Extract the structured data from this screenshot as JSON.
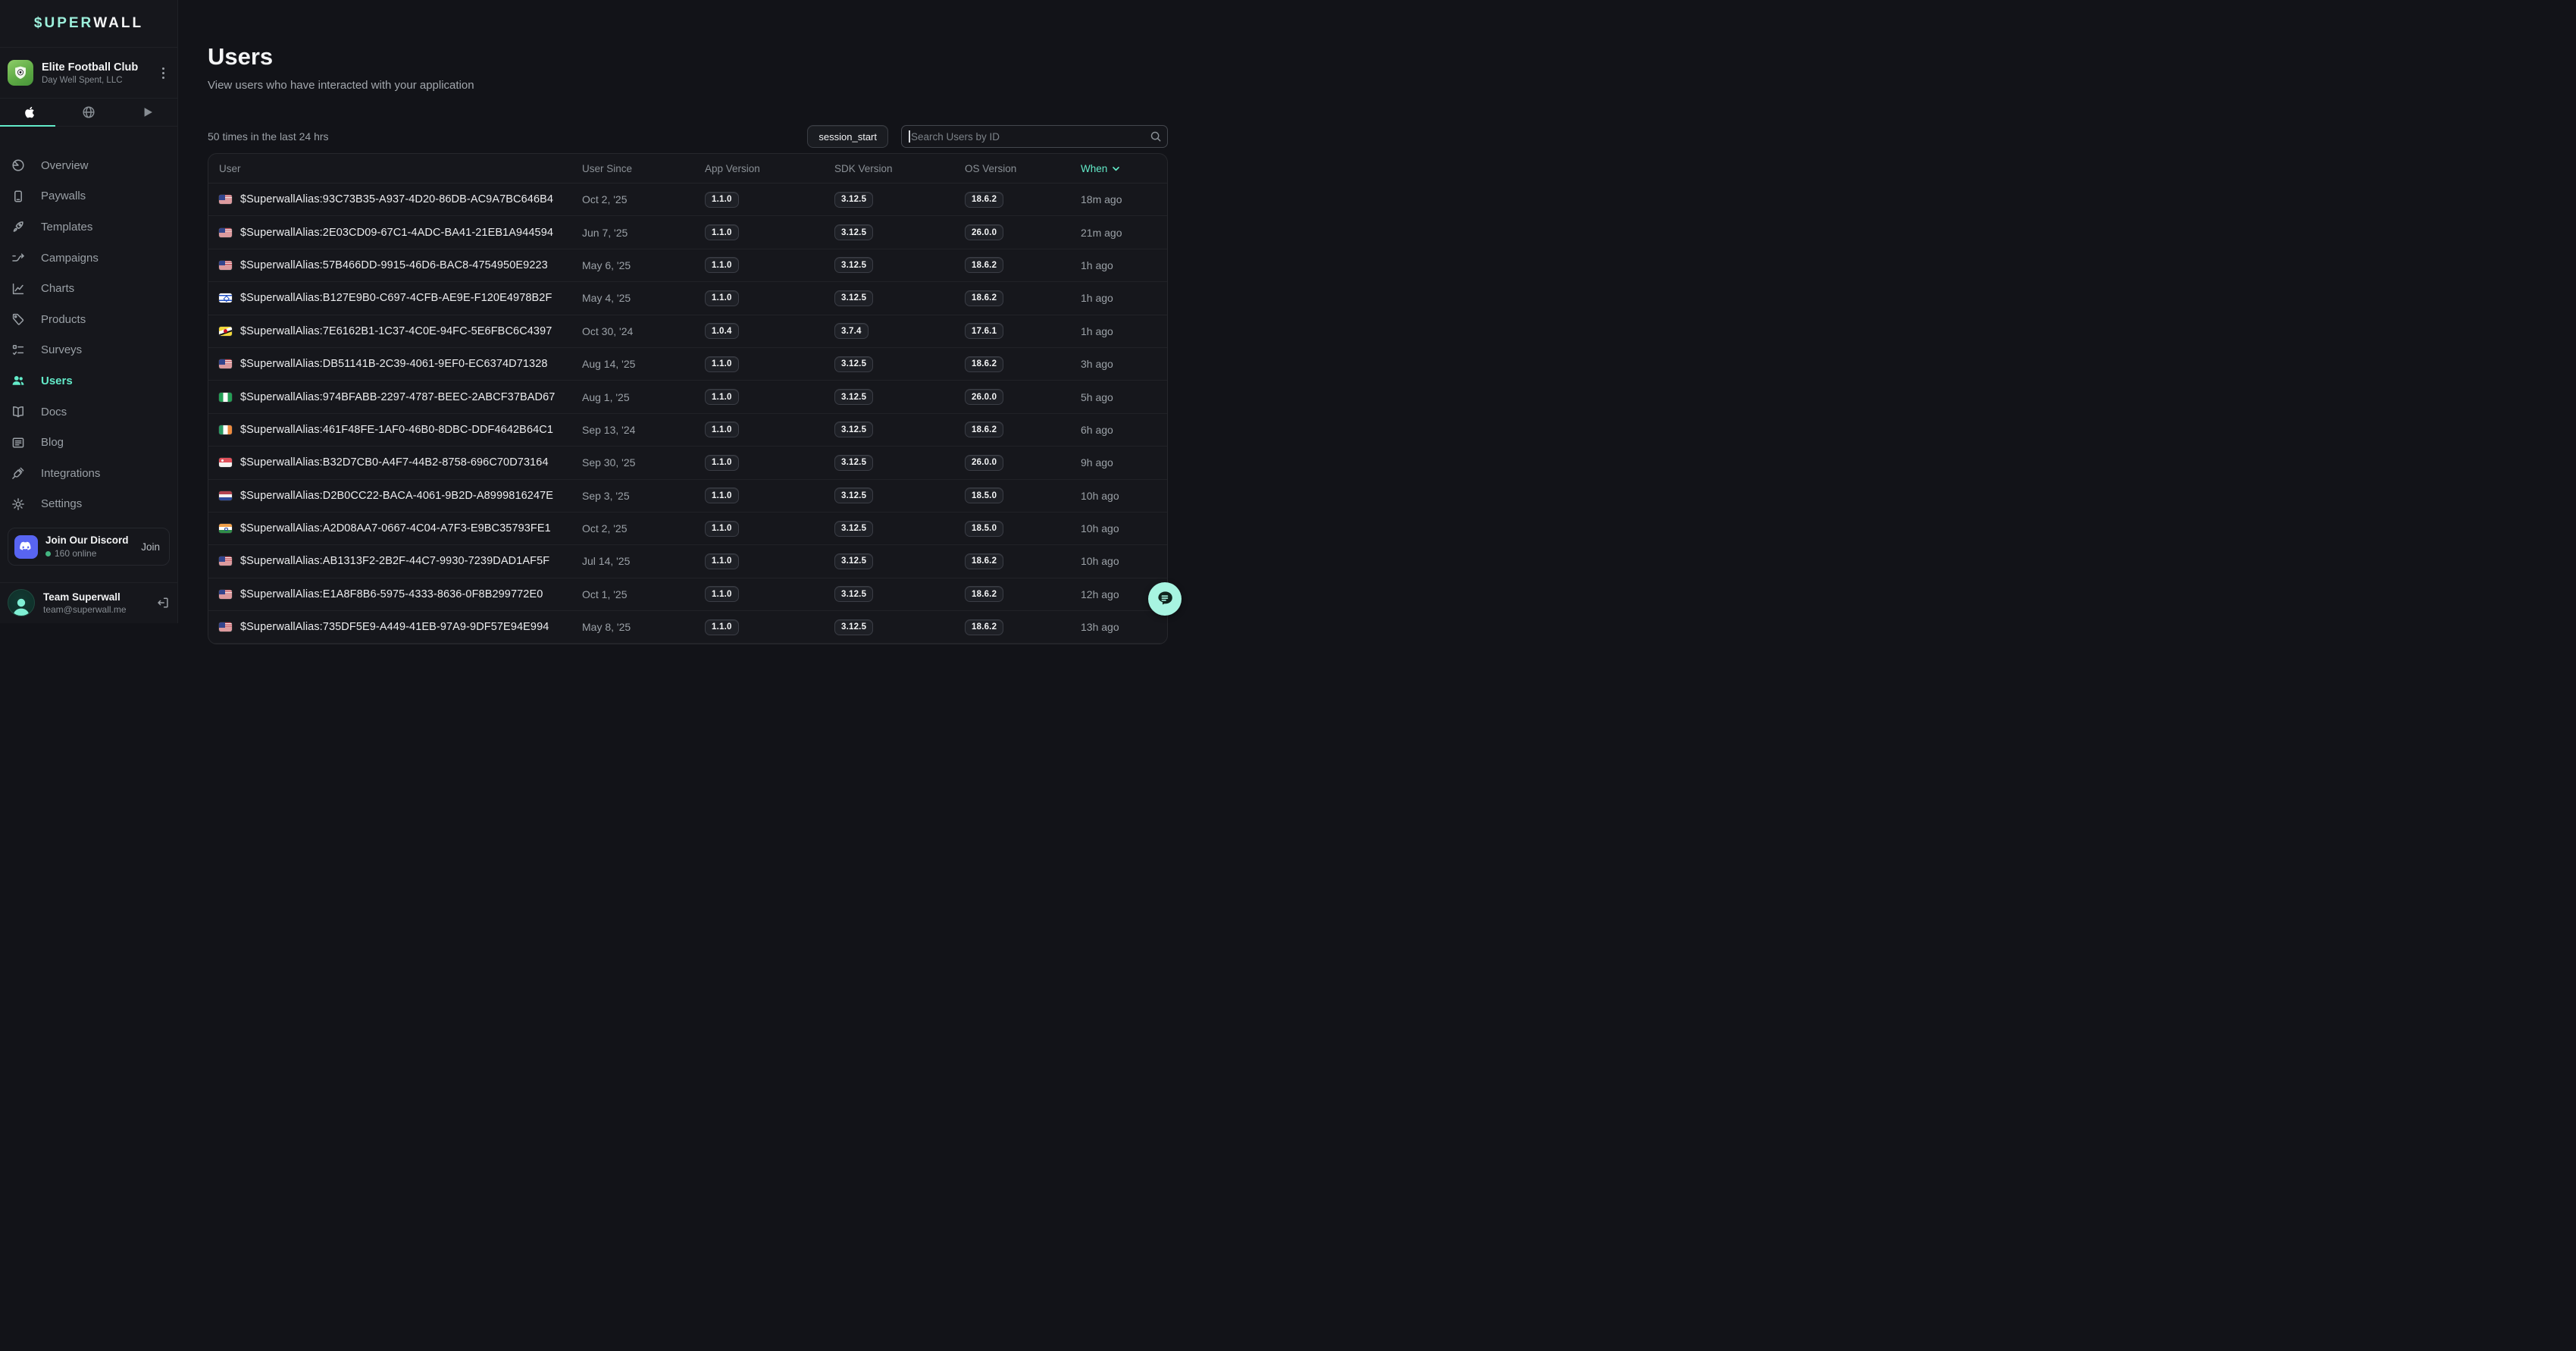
{
  "brand": {
    "logo_primary": "$UPER",
    "logo_secondary": "WALL"
  },
  "workspace": {
    "name": "Elite Football Club",
    "company": "Day Well Spent, LLC"
  },
  "platform_tabs": [
    {
      "id": "apple",
      "icon": "apple",
      "active": true
    },
    {
      "id": "web",
      "icon": "globe",
      "active": false
    },
    {
      "id": "google-play",
      "icon": "play",
      "active": false
    }
  ],
  "nav": {
    "items": [
      {
        "label": "Overview",
        "icon": "overview",
        "active": false
      },
      {
        "label": "Paywalls",
        "icon": "paywalls",
        "active": false
      },
      {
        "label": "Templates",
        "icon": "templates",
        "active": false
      },
      {
        "label": "Campaigns",
        "icon": "campaigns",
        "active": false
      },
      {
        "label": "Charts",
        "icon": "charts",
        "active": false
      },
      {
        "label": "Products",
        "icon": "products",
        "active": false
      },
      {
        "label": "Surveys",
        "icon": "surveys",
        "active": false
      },
      {
        "label": "Users",
        "icon": "users",
        "active": true
      },
      {
        "label": "Docs",
        "icon": "docs",
        "active": false
      },
      {
        "label": "Blog",
        "icon": "blog",
        "active": false
      },
      {
        "label": "Integrations",
        "icon": "integrations",
        "active": false
      },
      {
        "label": "Settings",
        "icon": "settings",
        "active": false
      }
    ]
  },
  "discord": {
    "title": "Join Our Discord",
    "online": "160 online",
    "action": "Join"
  },
  "account": {
    "name": "Team Superwall",
    "email": "team@superwall.me"
  },
  "page": {
    "title": "Users",
    "subtitle": "View users who have interacted with your application",
    "count_text": "50 times in the last 24 hrs",
    "event_filter": "session_start",
    "search_placeholder": "Search Users by ID"
  },
  "table": {
    "columns": [
      "User",
      "User Since",
      "App Version",
      "SDK Version",
      "OS Version",
      "When"
    ],
    "sorted_column": "When",
    "rows": [
      {
        "flag": "us",
        "user": "$SuperwallAlias:93C73B35-A937-4D20-86DB-AC9A7BC646B4",
        "user_since": "Oct 2, '25",
        "app_version": "1.1.0",
        "sdk_version": "3.12.5",
        "os_version": "18.6.2",
        "when": "18m ago"
      },
      {
        "flag": "us",
        "user": "$SuperwallAlias:2E03CD09-67C1-4ADC-BA41-21EB1A944594",
        "user_since": "Jun 7, '25",
        "app_version": "1.1.0",
        "sdk_version": "3.12.5",
        "os_version": "26.0.0",
        "when": "21m ago"
      },
      {
        "flag": "us",
        "user": "$SuperwallAlias:57B466DD-9915-46D6-BAC8-4754950E9223",
        "user_since": "May 6, '25",
        "app_version": "1.1.0",
        "sdk_version": "3.12.5",
        "os_version": "18.6.2",
        "when": "1h ago"
      },
      {
        "flag": "il",
        "user": "$SuperwallAlias:B127E9B0-C697-4CFB-AE9E-F120E4978B2F",
        "user_since": "May 4, '25",
        "app_version": "1.1.0",
        "sdk_version": "3.12.5",
        "os_version": "18.6.2",
        "when": "1h ago"
      },
      {
        "flag": "bn",
        "user": "$SuperwallAlias:7E6162B1-1C37-4C0E-94FC-5E6FBC6C4397",
        "user_since": "Oct 30, '24",
        "app_version": "1.0.4",
        "sdk_version": "3.7.4",
        "os_version": "17.6.1",
        "when": "1h ago"
      },
      {
        "flag": "us",
        "user": "$SuperwallAlias:DB51141B-2C39-4061-9EF0-EC6374D71328",
        "user_since": "Aug 14, '25",
        "app_version": "1.1.0",
        "sdk_version": "3.12.5",
        "os_version": "18.6.2",
        "when": "3h ago"
      },
      {
        "flag": "ng",
        "user": "$SuperwallAlias:974BFABB-2297-4787-BEEC-2ABCF37BAD67",
        "user_since": "Aug 1, '25",
        "app_version": "1.1.0",
        "sdk_version": "3.12.5",
        "os_version": "26.0.0",
        "when": "5h ago"
      },
      {
        "flag": "ie",
        "user": "$SuperwallAlias:461F48FE-1AF0-46B0-8DBC-DDF4642B64C1",
        "user_since": "Sep 13, '24",
        "app_version": "1.1.0",
        "sdk_version": "3.12.5",
        "os_version": "18.6.2",
        "when": "6h ago"
      },
      {
        "flag": "sg",
        "user": "$SuperwallAlias:B32D7CB0-A4F7-44B2-8758-696C70D73164",
        "user_since": "Sep 30, '25",
        "app_version": "1.1.0",
        "sdk_version": "3.12.5",
        "os_version": "26.0.0",
        "when": "9h ago"
      },
      {
        "flag": "nl",
        "user": "$SuperwallAlias:D2B0CC22-BACA-4061-9B2D-A8999816247E",
        "user_since": "Sep 3, '25",
        "app_version": "1.1.0",
        "sdk_version": "3.12.5",
        "os_version": "18.5.0",
        "when": "10h ago"
      },
      {
        "flag": "in",
        "user": "$SuperwallAlias:A2D08AA7-0667-4C04-A7F3-E9BC35793FE1",
        "user_since": "Oct 2, '25",
        "app_version": "1.1.0",
        "sdk_version": "3.12.5",
        "os_version": "18.5.0",
        "when": "10h ago"
      },
      {
        "flag": "us",
        "user": "$SuperwallAlias:AB1313F2-2B2F-44C7-9930-7239DAD1AF5F",
        "user_since": "Jul 14, '25",
        "app_version": "1.1.0",
        "sdk_version": "3.12.5",
        "os_version": "18.6.2",
        "when": "10h ago"
      },
      {
        "flag": "us",
        "user": "$SuperwallAlias:E1A8F8B6-5975-4333-8636-0F8B299772E0",
        "user_since": "Oct 1, '25",
        "app_version": "1.1.0",
        "sdk_version": "3.12.5",
        "os_version": "18.6.2",
        "when": "12h ago"
      },
      {
        "flag": "us",
        "user": "$SuperwallAlias:735DF5E9-A449-41EB-97A9-9DF57E94E994",
        "user_since": "May 8, '25",
        "app_version": "1.1.0",
        "sdk_version": "3.12.5",
        "os_version": "18.6.2",
        "when": "13h ago"
      }
    ]
  },
  "colors": {
    "accent": "#63EBC9",
    "discord_blurple": "#5865F2",
    "online_green": "#43B581"
  }
}
